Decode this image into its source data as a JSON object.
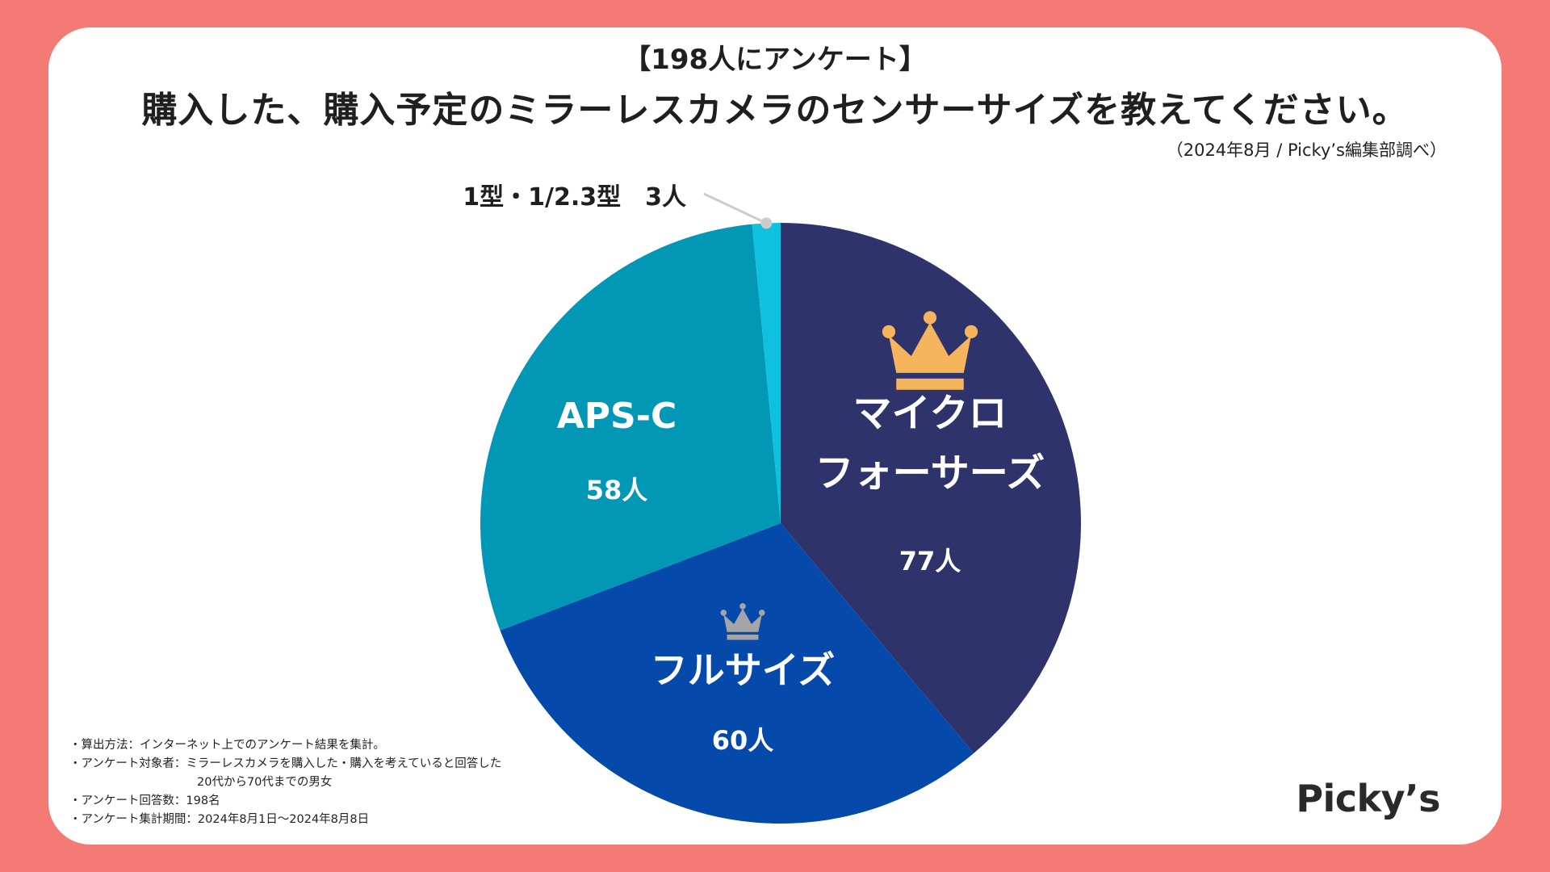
{
  "super_title": "【198人にアンケート】",
  "title": "購入した、購入予定のミラーレスカメラのセンサーサイズを教えてください。",
  "source": "（2024年8月 / Picky’s編集部調べ）",
  "chart_data": {
    "type": "pie",
    "slices": [
      {
        "name": "マイクロフォーサーズ",
        "name_lines": [
          "マイクロ",
          "フォーサーズ"
        ],
        "value": 77,
        "value_label": "77人",
        "color": "#2f336b",
        "rank_icon": "gold-crown-icon"
      },
      {
        "name": "フルサイズ",
        "name_lines": [
          "フルサイズ"
        ],
        "value": 60,
        "value_label": "60人",
        "color": "#0549ab",
        "rank_icon": "silver-crown-icon"
      },
      {
        "name": "APS-C",
        "name_lines": [
          "APS-C"
        ],
        "value": 58,
        "value_label": "58人",
        "color": "#0197b5",
        "rank_icon": ""
      },
      {
        "name": "1型・1/2.3型",
        "name_lines": [],
        "value": 3,
        "value_label": "3人",
        "color": "#10c1df",
        "rank_icon": "",
        "callout": "1型・1/2.3型　3人"
      }
    ],
    "total": 198,
    "start": "12 o'clock",
    "direction": "clockwise",
    "legend": "none"
  },
  "notes": [
    "・算出方法：インターネット上でのアンケート結果を集計。",
    "・アンケート対象者：ミラーレスカメラを購入した・購入を考えていると回答した",
    "20代から70代までの男女",
    "・アンケート回答数：198名",
    "・アンケート集計期間：2024年8月1日〜2024年8月8日"
  ],
  "logo_text": "Picky’s",
  "colors": {
    "background": "#f47a76",
    "card": "#ffffff",
    "gold_crown": "#f6b55c",
    "silver_crown": "#a5a5a5",
    "callout_line": "#cccccc"
  }
}
